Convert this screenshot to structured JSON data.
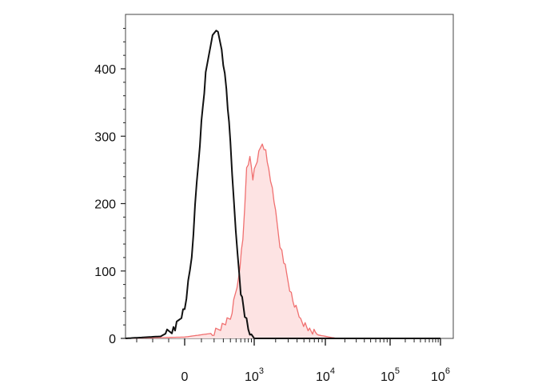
{
  "chart_data": {
    "type": "area",
    "title": "",
    "xlabel": "",
    "ylabel": "",
    "xscale": "biexponential",
    "ylim": [
      0,
      470
    ],
    "grid": false,
    "legend": "none",
    "y_ticks": [
      {
        "value": 0,
        "label": "0"
      },
      {
        "value": 100,
        "label": "100"
      },
      {
        "value": 200,
        "label": "200"
      },
      {
        "value": 300,
        "label": "300"
      },
      {
        "value": 400,
        "label": "400"
      }
    ],
    "x_ticks": [
      {
        "value": 0,
        "base": "0",
        "exp": ""
      },
      {
        "value": 1000,
        "base": "10",
        "exp": "3"
      },
      {
        "value": 10000,
        "base": "10",
        "exp": "4"
      },
      {
        "value": 100000,
        "base": "10",
        "exp": "5"
      },
      {
        "value": 1000000,
        "base": "10",
        "exp": "6"
      }
    ],
    "series": [
      {
        "style": "filled",
        "color": "#f07070",
        "fill": "#fde3e3",
        "points": [
          [
            -400,
            0
          ],
          [
            0,
            2
          ],
          [
            200,
            8
          ],
          [
            400,
            30
          ],
          [
            550,
            90
          ],
          [
            650,
            145
          ],
          [
            750,
            250
          ],
          [
            850,
            265
          ],
          [
            950,
            240
          ],
          [
            1100,
            265
          ],
          [
            1300,
            290
          ],
          [
            1450,
            280
          ],
          [
            1600,
            250
          ],
          [
            1800,
            220
          ],
          [
            2000,
            185
          ],
          [
            2300,
            140
          ],
          [
            2600,
            115
          ],
          [
            3000,
            85
          ],
          [
            3500,
            55
          ],
          [
            4500,
            28
          ],
          [
            6000,
            12
          ],
          [
            8000,
            5
          ],
          [
            15000,
            0
          ],
          [
            40000,
            0
          ],
          [
            1000000,
            0
          ]
        ]
      },
      {
        "style": "line",
        "color": "#111111",
        "fill": "none",
        "points": [
          [
            -400,
            0
          ],
          [
            -150,
            3
          ],
          [
            -60,
            15
          ],
          [
            0,
            45
          ],
          [
            40,
            120
          ],
          [
            70,
            230
          ],
          [
            100,
            320
          ],
          [
            130,
            390
          ],
          [
            170,
            440
          ],
          [
            220,
            460
          ],
          [
            280,
            430
          ],
          [
            340,
            370
          ],
          [
            400,
            290
          ],
          [
            460,
            200
          ],
          [
            530,
            120
          ],
          [
            600,
            70
          ],
          [
            700,
            35
          ],
          [
            800,
            15
          ],
          [
            900,
            6
          ],
          [
            1000,
            0
          ],
          [
            10000,
            0
          ],
          [
            1000000,
            0
          ]
        ]
      }
    ]
  }
}
